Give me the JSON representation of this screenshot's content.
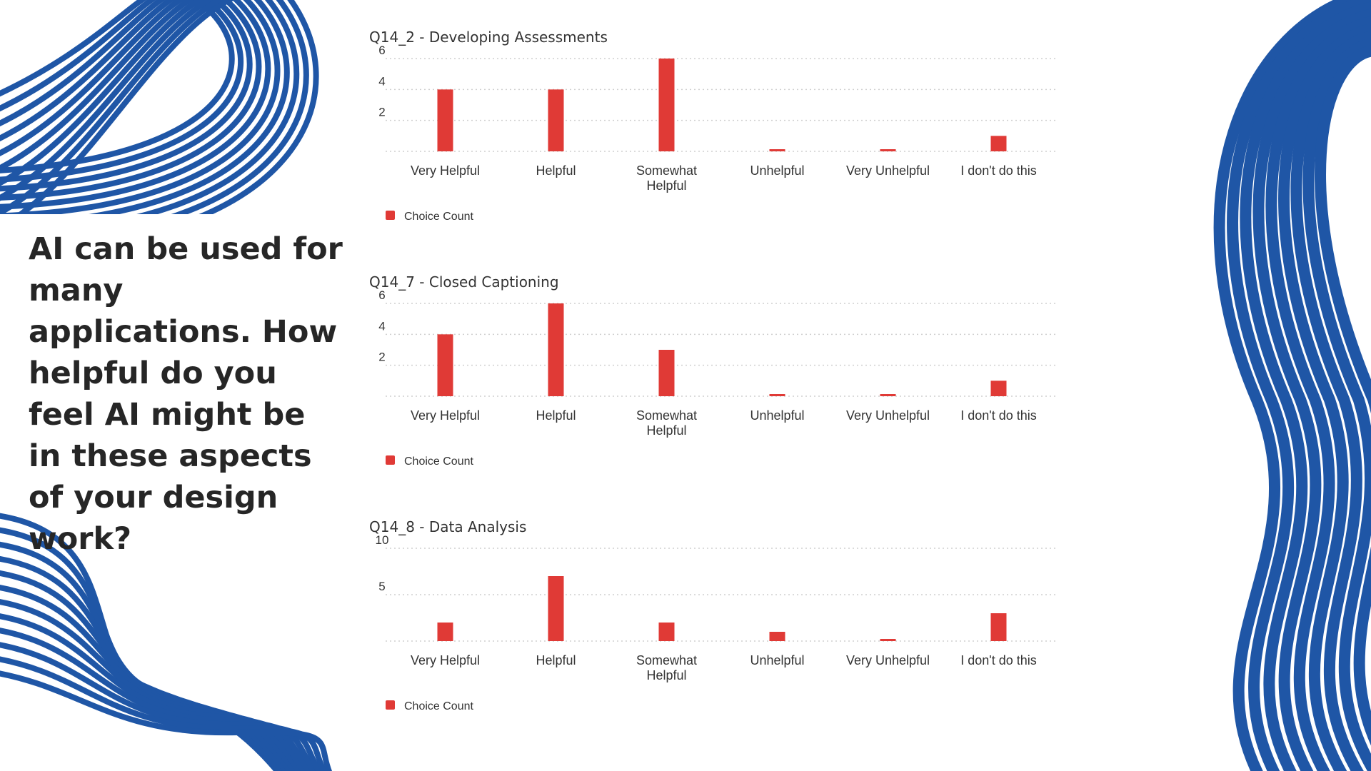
{
  "question": "AI can be used for many applications. How helpful do you feel AI might be in these aspects of your design work?",
  "colors": {
    "bar": "#e03a36",
    "decoration": "#1f56a6",
    "grid": "#cfcfcf"
  },
  "chart_data": [
    {
      "type": "bar",
      "title": "Q14_2 - Developing Assessments",
      "categories": [
        "Very Helpful",
        "Helpful",
        "Somewhat Helpful",
        "Unhelpful",
        "Very Unhelpful",
        "I don't do this"
      ],
      "series": [
        {
          "name": "Choice Count",
          "values": [
            4,
            4,
            6,
            0,
            0,
            1
          ]
        }
      ],
      "yticks": [
        2,
        4,
        6
      ],
      "ylim": [
        0,
        6
      ],
      "legend": "bottom-left"
    },
    {
      "type": "bar",
      "title": "Q14_7 - Closed Captioning",
      "categories": [
        "Very Helpful",
        "Helpful",
        "Somewhat Helpful",
        "Unhelpful",
        "Very Unhelpful",
        "I don't do this"
      ],
      "series": [
        {
          "name": "Choice Count",
          "values": [
            4,
            6,
            3,
            0,
            0,
            1
          ]
        }
      ],
      "yticks": [
        2,
        4,
        6
      ],
      "ylim": [
        0,
        6
      ],
      "legend": "bottom-left"
    },
    {
      "type": "bar",
      "title": "Q14_8 - Data Analysis",
      "categories": [
        "Very Helpful",
        "Helpful",
        "Somewhat Helpful",
        "Unhelpful",
        "Very Unhelpful",
        "I don't do this"
      ],
      "series": [
        {
          "name": "Choice Count",
          "values": [
            2,
            7,
            2,
            1,
            0,
            3
          ]
        }
      ],
      "yticks": [
        5,
        10
      ],
      "ylim": [
        0,
        10
      ],
      "legend": "bottom-left"
    }
  ]
}
